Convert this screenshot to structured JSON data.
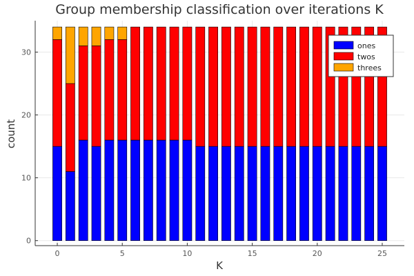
{
  "chart_data": {
    "type": "bar",
    "stacked": true,
    "title": "Group membership classification over iterations K",
    "xlabel": "K",
    "ylabel": "count",
    "x": [
      0,
      1,
      2,
      3,
      4,
      5,
      6,
      7,
      8,
      9,
      10,
      11,
      12,
      13,
      14,
      15,
      16,
      17,
      18,
      19,
      20,
      21,
      22,
      23,
      24,
      25
    ],
    "xlim": [
      -1.7,
      26.7
    ],
    "ylim": [
      -0.8,
      35
    ],
    "xticks": [
      0,
      5,
      10,
      15,
      20,
      25
    ],
    "yticks": [
      0,
      10,
      20,
      30
    ],
    "grid": true,
    "legend_position": "top-right",
    "series": [
      {
        "name": "ones",
        "color": "#0000ff",
        "values": [
          15,
          11,
          16,
          15,
          16,
          16,
          16,
          16,
          16,
          16,
          16,
          15,
          15,
          15,
          15,
          15,
          15,
          15,
          15,
          15,
          15,
          15,
          15,
          15,
          15,
          15
        ]
      },
      {
        "name": "twos",
        "color": "#ff0000",
        "values": [
          17,
          14,
          15,
          16,
          16,
          16,
          18,
          18,
          18,
          18,
          18,
          19,
          19,
          19,
          19,
          19,
          19,
          19,
          19,
          19,
          19,
          19,
          19,
          19,
          19,
          19
        ]
      },
      {
        "name": "threes",
        "color": "#ffa500",
        "values": [
          2,
          9,
          3,
          3,
          2,
          2,
          0,
          0,
          0,
          0,
          0,
          0,
          0,
          0,
          0,
          0,
          0,
          0,
          0,
          0,
          0,
          0,
          0,
          0,
          0,
          0
        ]
      }
    ]
  }
}
